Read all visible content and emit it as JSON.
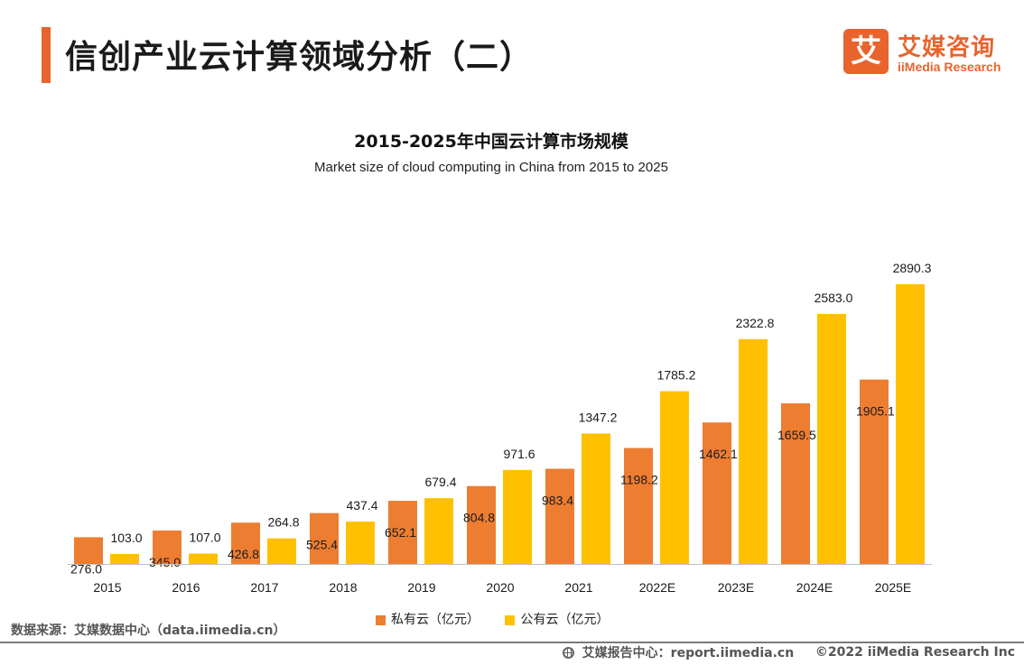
{
  "page": {
    "title": "信创产业云计算领域分析（二）"
  },
  "logo": {
    "mark": "艾",
    "name": "艾媒咨询",
    "english": "iiMedia Research"
  },
  "colors": {
    "accent": "#e8642c",
    "private_cloud": "#ed7d31",
    "public_cloud": "#ffc000",
    "axis": "#bfbfbf"
  },
  "chart_data": {
    "type": "bar",
    "title": "2015-2025年中国云计算市场规模",
    "subtitle": "Market size of cloud computing in China from 2015 to 2025",
    "categories": [
      "2015",
      "2016",
      "2017",
      "2018",
      "2019",
      "2020",
      "2021",
      "2022E",
      "2023E",
      "2024E",
      "2025E"
    ],
    "series": [
      {
        "name": "私有云（亿元）",
        "color": "#ed7d31",
        "values": [
          276.0,
          345.0,
          426.8,
          525.4,
          652.1,
          804.8,
          983.4,
          1198.2,
          1462.1,
          1659.5,
          1905.1
        ],
        "labels": [
          "276.0",
          "345.0",
          "426.8",
          "525.4",
          "652.1",
          "804.8",
          "983.4",
          "1198.2",
          "1462.1",
          "1659.5",
          "1905.1"
        ]
      },
      {
        "name": "公有云（亿元）",
        "color": "#ffc000",
        "values": [
          103.0,
          107.0,
          264.8,
          437.4,
          679.4,
          971.6,
          1347.2,
          1785.2,
          2322.8,
          2583.0,
          2890.3
        ],
        "labels": [
          "103.0",
          "107.0",
          "264.8",
          "437.4",
          "679.4",
          "971.6",
          "1347.2",
          "1785.2",
          "2322.8",
          "2583.0",
          "2890.3"
        ]
      }
    ],
    "ylim": [
      0,
      3000
    ],
    "grid": false,
    "legend_position": "bottom"
  },
  "source": "数据来源：艾媒数据中心（data.iimedia.cn）",
  "footer": {
    "report_center": "艾媒报告中心：report.iimedia.cn",
    "copyright": "©2022  iiMedia Research  Inc"
  }
}
